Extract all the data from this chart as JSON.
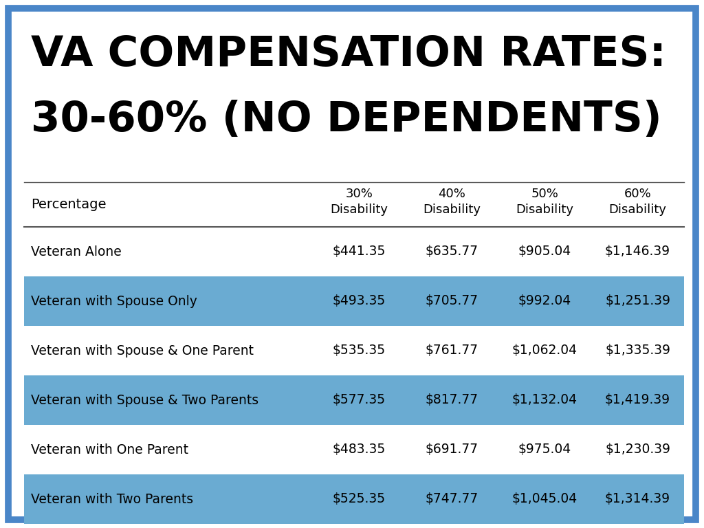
{
  "title_line1": "VA COMPENSATION RATES:",
  "title_line2": "30-60% (NO DEPENDENTS)",
  "col_headers": [
    "30%\nDisability",
    "40%\nDisability",
    "50%\nDisability",
    "60%\nDisability"
  ],
  "row_labels": [
    "Percentage",
    "Veteran Alone",
    "Veteran with Spouse Only",
    "Veteran with Spouse & One Parent",
    "Veteran with Spouse & Two Parents",
    "Veteran with One Parent",
    "Veteran with Two Parents"
  ],
  "table_data": [
    [
      "$441.35",
      "$635.77",
      "$905.04",
      "$1,146.39"
    ],
    [
      "$493.35",
      "$705.77",
      "$992.04",
      "$1,251.39"
    ],
    [
      "$535.35",
      "$761.77",
      "$1,062.04",
      "$1,335.39"
    ],
    [
      "$577.35",
      "$817.77",
      "$1,132.04",
      "$1,419.39"
    ],
    [
      "$483.35",
      "$691.77",
      "$975.04",
      "$1,230.39"
    ],
    [
      "$525.35",
      "$747.77",
      "$1,045.04",
      "$1,314.39"
    ]
  ],
  "highlighted_rows": [
    1,
    3,
    5
  ],
  "highlight_color": "#6aabd2",
  "background_color": "#ffffff",
  "border_color": "#4a86c8",
  "title_color": "#000000",
  "text_color": "#000000",
  "border_width": 7
}
